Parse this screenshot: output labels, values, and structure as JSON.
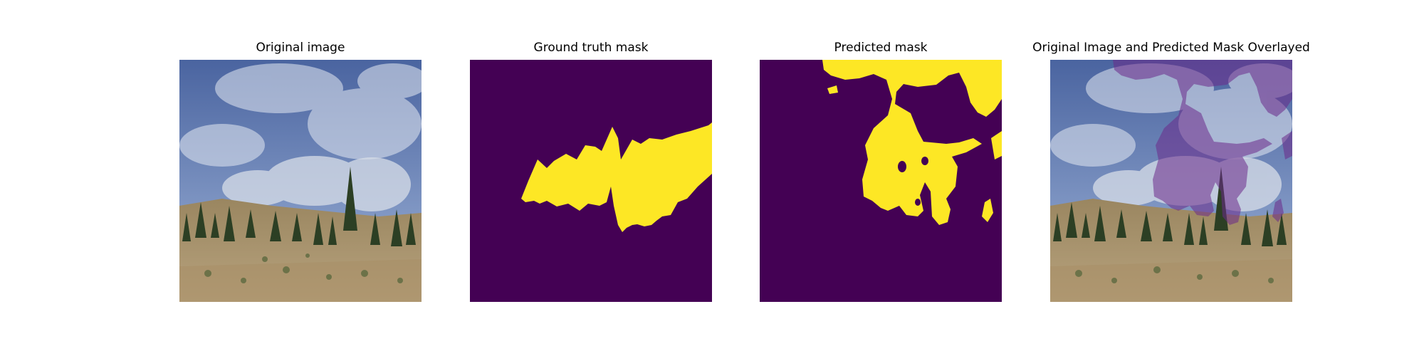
{
  "figure": {
    "panels": [
      {
        "title": "Original image"
      },
      {
        "title": "Ground truth mask"
      },
      {
        "title": "Predicted mask"
      },
      {
        "title": "Original Image and Predicted Mask Overlayed"
      }
    ]
  },
  "colors": {
    "mask_background": "#440154",
    "mask_foreground": "#fde725",
    "sky_top": "#4a64a0",
    "sky_bottom": "#9fb4d8",
    "smoke": "#d8dee8",
    "hill_light": "#b59c72",
    "hill_dark": "#7f6b48",
    "trees": "#2c3f24"
  }
}
